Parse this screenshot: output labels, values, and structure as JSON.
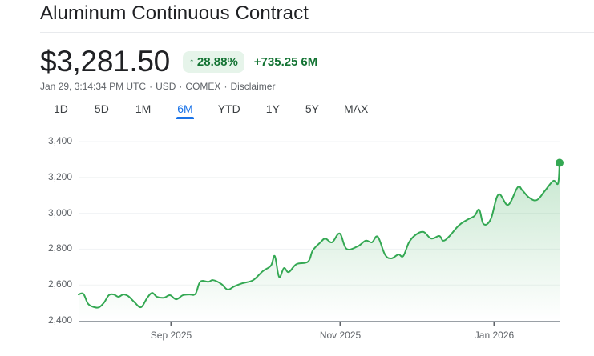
{
  "header": {
    "title": "Aluminum Continuous Contract"
  },
  "quote": {
    "price": "$3,281.50",
    "change_percent": "28.88%",
    "change_arrow_icon": "arrow-up-icon",
    "change_value": "+735.25",
    "change_period": "6M",
    "timestamp": "Jan 29, 3:14:34 PM UTC",
    "currency": "USD",
    "exchange": "COMEX",
    "disclaimer_label": "Disclaimer"
  },
  "tabs": [
    {
      "label": "1D",
      "active": false
    },
    {
      "label": "5D",
      "active": false
    },
    {
      "label": "1M",
      "active": false
    },
    {
      "label": "6M",
      "active": true
    },
    {
      "label": "YTD",
      "active": false
    },
    {
      "label": "1Y",
      "active": false
    },
    {
      "label": "5Y",
      "active": false
    },
    {
      "label": "MAX",
      "active": false
    }
  ],
  "colors": {
    "line": "#34a853",
    "positive_text": "#137333",
    "badge_bg": "#e6f4ea",
    "active_tab": "#1a73e8",
    "gridline": "#f1f3f4",
    "axis": "#9aa0a6"
  },
  "chart_data": {
    "type": "area",
    "title": "Aluminum Continuous Contract",
    "xlabel": "",
    "ylabel": "",
    "ylim": [
      2400,
      3400
    ],
    "yticks": [
      2400,
      2600,
      2800,
      3000,
      3200,
      3400
    ],
    "ytick_labels": [
      "2,400",
      "2,600",
      "2,800",
      "3,000",
      "3,200",
      "3,400"
    ],
    "xtick_labels": [
      "Sep 2025",
      "Nov 2025",
      "Jan 2026"
    ],
    "xtick_positions": [
      0.192,
      0.543,
      0.863
    ],
    "grid": true,
    "legend": false,
    "last_point_marker": true,
    "series": [
      {
        "name": "Aluminum Continuous Contract",
        "x": [
          0.0,
          0.01,
          0.02,
          0.033,
          0.043,
          0.053,
          0.063,
          0.073,
          0.083,
          0.093,
          0.103,
          0.117,
          0.13,
          0.143,
          0.153,
          0.163,
          0.178,
          0.19,
          0.203,
          0.217,
          0.23,
          0.243,
          0.253,
          0.27,
          0.28,
          0.297,
          0.31,
          0.323,
          0.34,
          0.363,
          0.383,
          0.4,
          0.408,
          0.417,
          0.427,
          0.437,
          0.453,
          0.477,
          0.487,
          0.503,
          0.513,
          0.527,
          0.543,
          0.557,
          0.58,
          0.597,
          0.61,
          0.622,
          0.637,
          0.65,
          0.665,
          0.675,
          0.687,
          0.7,
          0.717,
          0.733,
          0.75,
          0.758,
          0.77,
          0.79,
          0.807,
          0.823,
          0.833,
          0.842,
          0.857,
          0.873,
          0.893,
          0.913,
          0.923,
          0.937,
          0.953,
          0.97,
          0.987,
          0.997,
          1.0
        ],
        "values": [
          2547,
          2550,
          2494,
          2476,
          2476,
          2502,
          2543,
          2547,
          2534,
          2547,
          2538,
          2502,
          2476,
          2529,
          2556,
          2534,
          2529,
          2543,
          2520,
          2543,
          2547,
          2550,
          2618,
          2618,
          2627,
          2605,
          2574,
          2591,
          2609,
          2627,
          2677,
          2708,
          2761,
          2645,
          2694,
          2672,
          2716,
          2730,
          2793,
          2838,
          2859,
          2838,
          2887,
          2802,
          2815,
          2847,
          2838,
          2869,
          2770,
          2748,
          2770,
          2761,
          2838,
          2878,
          2896,
          2859,
          2873,
          2847,
          2869,
          2931,
          2962,
          2985,
          3020,
          2940,
          2967,
          3105,
          3047,
          3145,
          3127,
          3087,
          3074,
          3127,
          3181,
          3167,
          3281.5
        ]
      }
    ]
  }
}
